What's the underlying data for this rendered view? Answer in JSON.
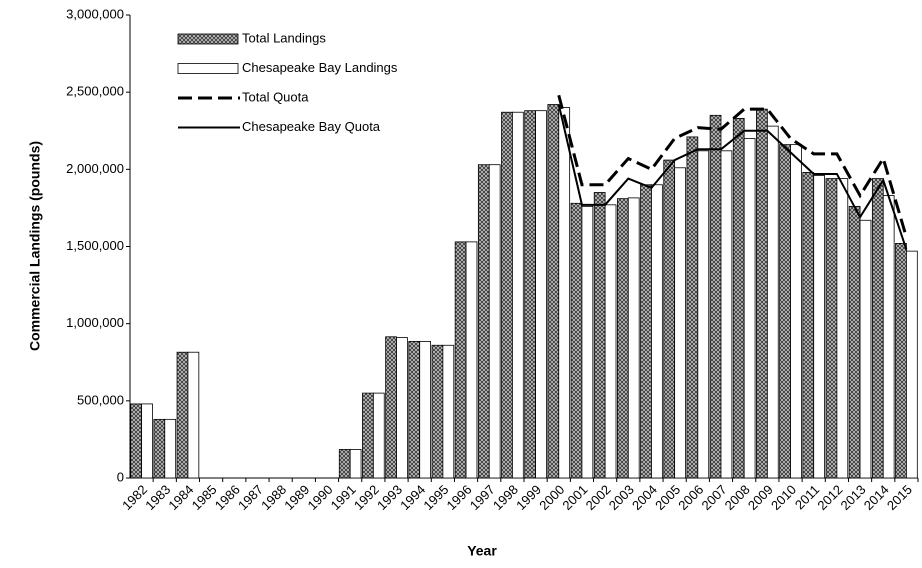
{
  "chart_data": {
    "type": "bar",
    "x_label": "Year",
    "y_label": "Commercial Landings (pounds)",
    "categories": [
      "1982",
      "1983",
      "1984",
      "1985",
      "1986",
      "1987",
      "1988",
      "1989",
      "1990",
      "1991",
      "1992",
      "1993",
      "1994",
      "1995",
      "1996",
      "1997",
      "1998",
      "1999",
      "2000",
      "2001",
      "2002",
      "2003",
      "2004",
      "2005",
      "2006",
      "2007",
      "2008",
      "2009",
      "2010",
      "2011",
      "2012",
      "2013",
      "2014",
      "2015"
    ],
    "series": [
      {
        "name": "Total Landings",
        "type": "bar",
        "color": "#606060",
        "pattern": "crosshatch",
        "values": [
          480000,
          380000,
          815000,
          0,
          0,
          0,
          0,
          0,
          0,
          185000,
          550000,
          915000,
          885000,
          860000,
          1530000,
          2030000,
          2370000,
          2380000,
          2420000,
          1780000,
          1850000,
          1810000,
          1900000,
          2060000,
          2210000,
          2350000,
          2330000,
          2390000,
          2160000,
          1980000,
          1940000,
          1760000,
          1940000,
          1520000
        ]
      },
      {
        "name": "Chesapeake Bay Landings",
        "type": "bar",
        "color": "#ffffff",
        "values": [
          480000,
          380000,
          815000,
          0,
          0,
          0,
          0,
          0,
          0,
          185000,
          550000,
          910000,
          885000,
          860000,
          1530000,
          2030000,
          2370000,
          2380000,
          2400000,
          1760000,
          1770000,
          1815000,
          1900000,
          2010000,
          2120000,
          2120000,
          2200000,
          2280000,
          2160000,
          1960000,
          1940000,
          1670000,
          1830000,
          1470000
        ]
      },
      {
        "name": "Total Quota",
        "type": "line",
        "color": "#000000",
        "dashed": true,
        "values": [
          null,
          null,
          null,
          null,
          null,
          null,
          null,
          null,
          null,
          null,
          null,
          null,
          null,
          null,
          null,
          null,
          null,
          null,
          2480000,
          1900000,
          1900000,
          2070000,
          2000000,
          2200000,
          2270000,
          2260000,
          2390000,
          2390000,
          2200000,
          2100000,
          2100000,
          1830000,
          2070000,
          1560000
        ]
      },
      {
        "name": "Chesapeake Bay Quota",
        "type": "line",
        "color": "#000000",
        "dashed": false,
        "values": [
          null,
          null,
          null,
          null,
          null,
          null,
          null,
          null,
          null,
          null,
          null,
          null,
          null,
          null,
          null,
          null,
          null,
          null,
          2420000,
          1770000,
          1770000,
          1940000,
          1880000,
          2060000,
          2130000,
          2130000,
          2250000,
          2250000,
          2110000,
          1970000,
          1970000,
          1690000,
          1930000,
          1480000
        ]
      }
    ],
    "ylim": [
      0,
      3000000
    ],
    "yticks": [
      0,
      {
        "value": 500000,
        "label": "500,000"
      },
      {
        "value": 1000000,
        "label": "1,000,000"
      },
      {
        "value": 1500000,
        "label": "1,500,000"
      },
      {
        "value": 2000000,
        "label": "2,000,000"
      },
      {
        "value": 2500000,
        "label": "2,500,000"
      },
      {
        "value": 3000000,
        "label": "3,000,000"
      }
    ],
    "grid": false,
    "legend": "upper left"
  }
}
